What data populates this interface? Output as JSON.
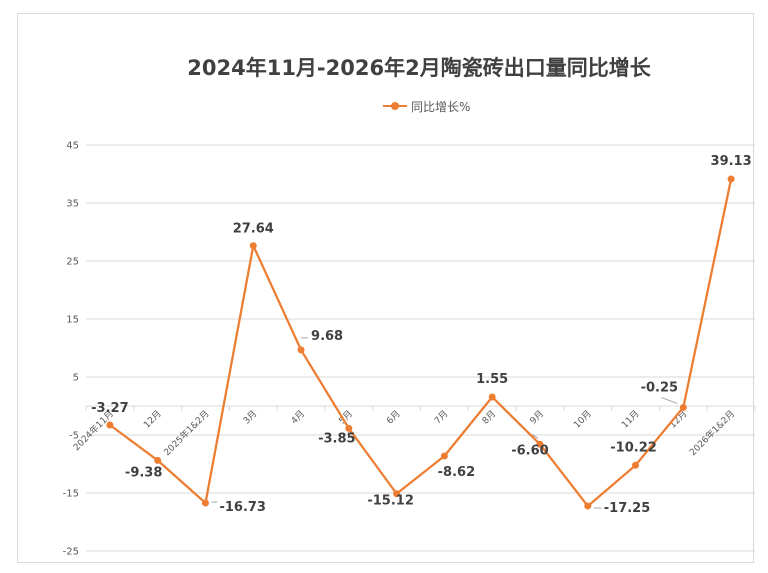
{
  "chart_data": {
    "type": "line",
    "title": "2024年11月-2026年2月陶瓷砖出口量同比增长",
    "legend_position": "top",
    "grid": true,
    "ylim": [
      -25,
      45
    ],
    "yticks": [
      45,
      35,
      25,
      15,
      5,
      -5,
      -15,
      -25
    ],
    "categories": [
      "2024年11月",
      "12月",
      "2025年1&2月",
      "3月",
      "4月",
      "5月",
      "6月",
      "7月",
      "8月",
      "9月",
      "10月",
      "11月",
      "12月",
      "2026年1&2月"
    ],
    "series": [
      {
        "name": "同比增长%",
        "color": "#ed7d31",
        "values": [
          -3.27,
          -9.38,
          -16.73,
          27.64,
          9.68,
          -3.85,
          -15.12,
          -8.62,
          1.55,
          -6.6,
          -17.25,
          -10.22,
          -0.25,
          39.13
        ],
        "labels": [
          "-3.27",
          "-9.38",
          "-16.73",
          "27.64",
          "9.68",
          "-3.85",
          "-15.12",
          "-8.62",
          "1.55",
          "-6.60",
          "-17.25",
          "-10.22",
          "-0.25",
          "39.13"
        ]
      }
    ]
  }
}
